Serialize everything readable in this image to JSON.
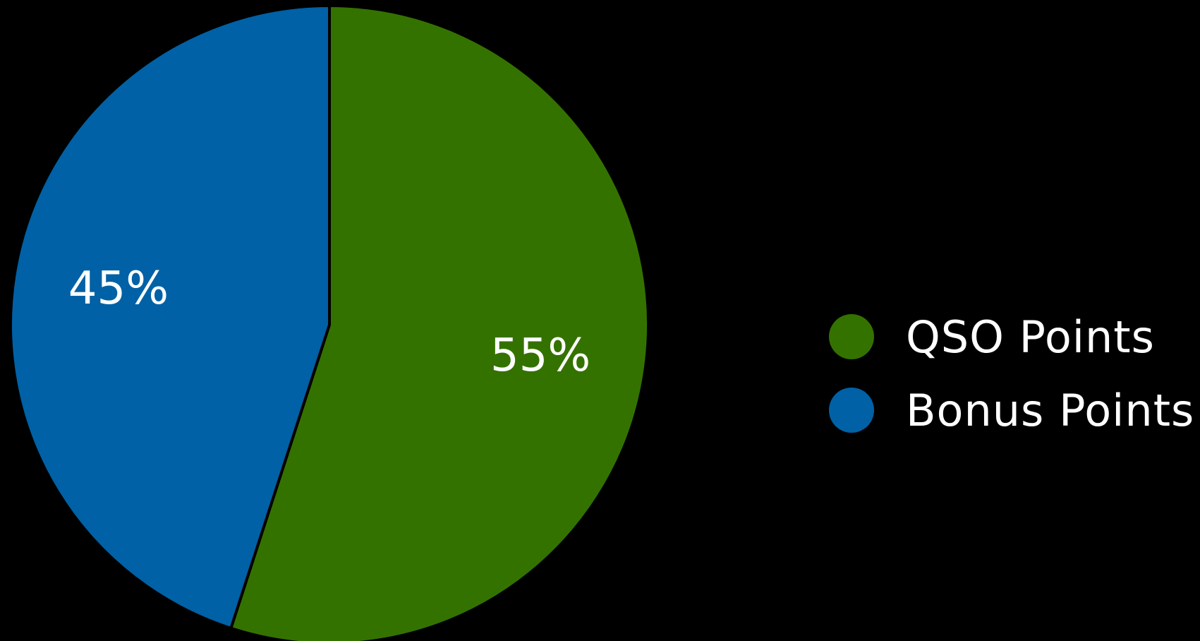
{
  "chart_data": {
    "type": "pie",
    "series": [
      {
        "name": "QSO Points",
        "value": 55,
        "label": "55%",
        "color": "#347200"
      },
      {
        "name": "Bonus Points",
        "value": 45,
        "label": "45%",
        "color": "#0061a6"
      }
    ],
    "start_angle_deg": 0,
    "direction": "clockwise",
    "legend_position": "right",
    "background": "#000000"
  },
  "legend": {
    "items": [
      {
        "label": "QSO Points",
        "color": "#347200"
      },
      {
        "label": "Bonus Points",
        "color": "#0061a6"
      }
    ]
  }
}
